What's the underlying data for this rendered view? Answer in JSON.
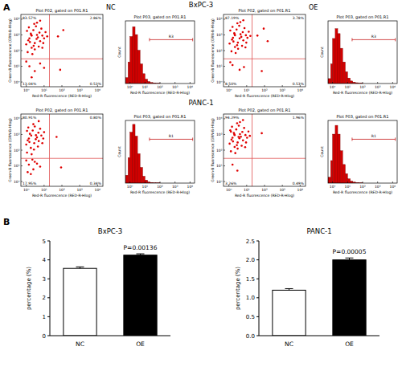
{
  "figure": {
    "panel_labels": [
      "A",
      "B"
    ],
    "row_titles": [
      "BxPC-3",
      "PANC-1"
    ]
  },
  "chart_data": [
    {
      "type": "scatter",
      "title": "Plot P02, gated on P01.R1",
      "subtitle": "NC",
      "xlabel": "Red-R fluorescence (RED-R-Hlog)",
      "ylabel": "Green-B fluorescence (GRN-B-Hlog)",
      "log": true,
      "xlim": [
        0.5,
        20000
      ],
      "ylim": [
        0.5,
        20000
      ],
      "xticks": [
        {
          "value": 1,
          "label": "10⁰"
        },
        {
          "value": 10,
          "label": "10¹"
        },
        {
          "value": 100,
          "label": "10²"
        },
        {
          "value": 1000,
          "label": "10³"
        },
        {
          "value": 10000,
          "label": "10⁴"
        }
      ],
      "yticks": [
        {
          "value": 1,
          "label": "10⁰"
        },
        {
          "value": 10,
          "label": "10¹"
        },
        {
          "value": 100,
          "label": "10²"
        },
        {
          "value": 1000,
          "label": "10³"
        },
        {
          "value": 10000,
          "label": "10⁴"
        }
      ],
      "gate_x": 20,
      "gate_y": 30,
      "quadrant_labels": [
        "83.57%",
        "2.86%",
        "13.04%",
        "0.53%"
      ],
      "color": "#e00000",
      "x": [
        1.2,
        2,
        3,
        1.5,
        4,
        2.5,
        6,
        1,
        8,
        3.5,
        1.8,
        5,
        2.2,
        10,
        1.3,
        7,
        4.5,
        2.8,
        1.1,
        3,
        12,
        6,
        2,
        9,
        1.6,
        5.5,
        3.8,
        15,
        1.4,
        2.6,
        8,
        4,
        1.9,
        1.5,
        3,
        1,
        6,
        2,
        10,
        60,
        120,
        80
      ],
      "y": [
        80,
        150,
        300,
        600,
        1000,
        2000,
        400,
        250,
        900,
        3500,
        1200,
        180,
        60,
        600,
        450,
        2500,
        700,
        5000,
        1800,
        120,
        1500,
        8000,
        900,
        300,
        350,
        1400,
        550,
        800,
        3000,
        200,
        150,
        6000,
        1000,
        10,
        5,
        20,
        15,
        2,
        8,
        800,
        2000,
        6
      ]
    },
    {
      "type": "histogram",
      "title": "Plot P03, gated on P01.R1",
      "xlabel": "Red-R fluorescence (RED-R-Hlog)",
      "ylabel": "Count",
      "log": "x",
      "xlim": [
        0.5,
        20000
      ],
      "ylim": [
        0,
        320
      ],
      "tick_labels": "x",
      "xticks": [
        {
          "value": 1,
          "label": "10⁰"
        },
        {
          "value": 10,
          "label": "10¹"
        },
        {
          "value": 100,
          "label": "10²"
        },
        {
          "value": 1000,
          "label": "10³"
        },
        {
          "value": 10000,
          "label": "10⁴"
        }
      ],
      "bins": [
        0.5,
        0.75,
        1,
        1.5,
        2.2,
        3.2,
        4.7,
        7,
        10,
        15,
        22,
        33,
        50,
        100
      ],
      "counts": [
        30,
        110,
        240,
        290,
        250,
        170,
        100,
        50,
        22,
        10,
        5,
        3,
        1
      ],
      "color": "#d40000",
      "region": {
        "label": "R3",
        "from": 20,
        "to": 15000
      }
    },
    {
      "type": "scatter",
      "title": "Plot P02, gated on P01.R1",
      "subtitle": "OE",
      "xlabel": "Red-R fluorescence (RED-R-Hlog)",
      "ylabel": "Green-B fluorescence (GRN-B-Hlog)",
      "log": true,
      "xlim": [
        0.5,
        20000
      ],
      "ylim": [
        0.5,
        20000
      ],
      "xticks": [
        {
          "value": 1,
          "label": "10⁰"
        },
        {
          "value": 10,
          "label": "10¹"
        },
        {
          "value": 100,
          "label": "10²"
        },
        {
          "value": 1000,
          "label": "10³"
        },
        {
          "value": 10000,
          "label": "10⁴"
        }
      ],
      "yticks": [
        {
          "value": 1,
          "label": "10⁰"
        },
        {
          "value": 10,
          "label": "10¹"
        },
        {
          "value": 100,
          "label": "10²"
        },
        {
          "value": 1000,
          "label": "10³"
        },
        {
          "value": 10000,
          "label": "10⁴"
        }
      ],
      "gate_x": 20,
      "gate_y": 30,
      "quadrant_labels": [
        "87.19%",
        "3.78%",
        "8.50%",
        "0.53%"
      ],
      "color": "#e00000",
      "x": [
        1.4,
        2.2,
        3.2,
        1.7,
        4.5,
        2.7,
        6.5,
        1.1,
        9,
        3.8,
        2,
        5.5,
        2.4,
        11,
        1.5,
        7.5,
        5,
        3,
        1.2,
        3.3,
        13,
        6.5,
        2.2,
        9.5,
        1.8,
        6,
        4,
        16,
        1.6,
        2.9,
        8.5,
        4.4,
        2.1,
        1.6,
        4,
        1.2,
        7,
        40,
        90,
        150,
        70
      ],
      "y": [
        90,
        170,
        320,
        650,
        1100,
        2200,
        450,
        280,
        950,
        3800,
        1300,
        200,
        70,
        650,
        500,
        2700,
        750,
        5500,
        1900,
        130,
        1600,
        8500,
        950,
        320,
        380,
        1500,
        600,
        850,
        3200,
        220,
        160,
        6500,
        1100,
        12,
        6,
        18,
        9,
        900,
        2500,
        400,
        5
      ]
    },
    {
      "type": "histogram",
      "title": "Plot P03, gated on P01.R1",
      "xlabel": "Red-R fluorescence (RED-R-Hlog)",
      "ylabel": "Count",
      "log": "x",
      "xlim": [
        0.5,
        20000
      ],
      "ylim": [
        0,
        320
      ],
      "tick_labels": "x",
      "xticks": [
        {
          "value": 1,
          "label": "10⁰"
        },
        {
          "value": 10,
          "label": "10¹"
        },
        {
          "value": 100,
          "label": "10²"
        },
        {
          "value": 1000,
          "label": "10³"
        },
        {
          "value": 10000,
          "label": "10⁴"
        }
      ],
      "bins": [
        0.5,
        0.75,
        1,
        1.5,
        2.2,
        3.2,
        4.7,
        7,
        10,
        15,
        22,
        33,
        50,
        100
      ],
      "counts": [
        25,
        100,
        230,
        280,
        255,
        180,
        110,
        60,
        28,
        13,
        7,
        4,
        2
      ],
      "color": "#d40000",
      "region": {
        "label": "R3",
        "from": 20,
        "to": 15000
      }
    },
    {
      "type": "scatter",
      "title": "Plot P02, gated on P01.R1",
      "xlabel": "Red-R fluorescence (RED-R-Hlog)",
      "ylabel": "Green-B fluorescence (GRN-B-Hlog)",
      "log": true,
      "xlim": [
        0.5,
        20000
      ],
      "ylim": [
        0.5,
        20000
      ],
      "xticks": [
        {
          "value": 1,
          "label": "10⁰"
        },
        {
          "value": 10,
          "label": "10¹"
        },
        {
          "value": 100,
          "label": "10²"
        },
        {
          "value": 1000,
          "label": "10³"
        },
        {
          "value": 10000,
          "label": "10⁴"
        }
      ],
      "yticks": [
        {
          "value": 1,
          "label": "10⁰"
        },
        {
          "value": 10,
          "label": "10¹"
        },
        {
          "value": 100,
          "label": "10²"
        },
        {
          "value": 1000,
          "label": "10³"
        },
        {
          "value": 10000,
          "label": "10⁴"
        }
      ],
      "gate_x": 20,
      "gate_y": 30,
      "quadrant_labels": [
        "80.91%",
        "0.80%",
        "17.95%",
        "0.34%"
      ],
      "color": "#e00000",
      "x": [
        1.1,
        1.8,
        2.8,
        1.4,
        3.5,
        2.3,
        5,
        1,
        7,
        3,
        1.6,
        4.5,
        2,
        9,
        1.2,
        6,
        4,
        2.5,
        1.1,
        2.7,
        10,
        5,
        1.9,
        8,
        1.5,
        4.8,
        3.4,
        1.3,
        1.4,
        2.5,
        1,
        4,
        1.8,
        6,
        3,
        1.2,
        2.2,
        50,
        90
      ],
      "y": [
        70,
        140,
        280,
        550,
        900,
        1800,
        380,
        230,
        850,
        3200,
        1100,
        170,
        55,
        550,
        420,
        2300,
        650,
        4500,
        1700,
        110,
        1400,
        7000,
        850,
        280,
        330,
        1300,
        500,
        2800,
        12,
        6,
        22,
        14,
        3,
        9,
        18,
        4,
        25,
        700,
        8
      ]
    },
    {
      "type": "histogram",
      "title": "Plot P03, gated on P01.R1",
      "xlabel": "Red-R fluorescence (RED-R-Hlog)",
      "ylabel": "Count",
      "log": "x",
      "xlim": [
        0.5,
        20000
      ],
      "ylim": [
        0,
        320
      ],
      "tick_labels": "x",
      "xticks": [
        {
          "value": 1,
          "label": "10⁰"
        },
        {
          "value": 10,
          "label": "10¹"
        },
        {
          "value": 100,
          "label": "10²"
        },
        {
          "value": 1000,
          "label": "10³"
        },
        {
          "value": 10000,
          "label": "10⁴"
        }
      ],
      "bins": [
        0.5,
        0.75,
        1,
        1.5,
        2.2,
        3.2,
        4.7,
        7,
        10,
        15,
        22,
        33,
        50,
        100
      ],
      "counts": [
        40,
        130,
        260,
        300,
        240,
        150,
        80,
        35,
        15,
        6,
        3,
        1,
        1
      ],
      "color": "#d40000",
      "region": {
        "label": "R1",
        "from": 20,
        "to": 15000
      }
    },
    {
      "type": "scatter",
      "title": "Plot P02, gated on P01.R1",
      "xlabel": "Red-R fluorescence (RED-R-Hlog)",
      "ylabel": "Green-B fluorescence (GRN-B-Hlog)",
      "log": true,
      "xlim": [
        0.5,
        20000
      ],
      "ylim": [
        0.5,
        20000
      ],
      "xticks": [
        {
          "value": 1,
          "label": "10⁰"
        },
        {
          "value": 10,
          "label": "10¹"
        },
        {
          "value": 100,
          "label": "10²"
        },
        {
          "value": 1000,
          "label": "10³"
        },
        {
          "value": 10000,
          "label": "10⁴"
        }
      ],
      "yticks": [
        {
          "value": 1,
          "label": "10⁰"
        },
        {
          "value": 10,
          "label": "10¹"
        },
        {
          "value": 100,
          "label": "10²"
        },
        {
          "value": 1000,
          "label": "10³"
        },
        {
          "value": 10000,
          "label": "10⁴"
        }
      ],
      "gate_x": 20,
      "gate_y": 30,
      "quadrant_labels": [
        "94.29%",
        "1.96%",
        "3.26%",
        "0.49%"
      ],
      "color": "#e00000",
      "x": [
        1.3,
        2.1,
        3.1,
        1.6,
        4.2,
        2.6,
        6.2,
        1.1,
        8.5,
        3.6,
        1.9,
        5.2,
        2.3,
        10.5,
        1.4,
        7.2,
        4.7,
        2.9,
        1.2,
        3.1,
        12.5,
        6.2,
        2.1,
        9.2,
        1.7,
        5.7,
        3.9,
        15,
        1.5,
        2.8,
        8.2,
        4.2,
        2,
        1.3,
        3.5,
        1.6,
        3,
        70
      ],
      "y": [
        85,
        160,
        310,
        620,
        1050,
        2100,
        420,
        260,
        920,
        3600,
        1250,
        190,
        65,
        620,
        470,
        2600,
        720,
        5200,
        1850,
        125,
        1550,
        8200,
        920,
        310,
        360,
        1450,
        570,
        820,
        3100,
        210,
        155,
        6200,
        1050,
        1500,
        700,
        12,
        5,
        1200
      ]
    },
    {
      "type": "histogram",
      "title": "Plot P03, gated on P01.R1",
      "xlabel": "Red-R fluorescence (RED-R-Hlog)",
      "ylabel": "Count",
      "log": "x",
      "xlim": [
        0.5,
        20000
      ],
      "ylim": [
        0,
        320
      ],
      "tick_labels": "x",
      "xticks": [
        {
          "value": 1,
          "label": "10⁰"
        },
        {
          "value": 10,
          "label": "10¹"
        },
        {
          "value": 100,
          "label": "10²"
        },
        {
          "value": 1000,
          "label": "10³"
        },
        {
          "value": 10000,
          "label": "10⁴"
        }
      ],
      "bins": [
        0.5,
        0.75,
        1,
        1.5,
        2.2,
        3.2,
        4.7,
        7,
        10,
        15,
        22,
        33,
        50,
        100
      ],
      "counts": [
        30,
        115,
        250,
        295,
        250,
        165,
        95,
        48,
        22,
        10,
        5,
        2,
        1
      ],
      "color": "#d40000",
      "region": {
        "label": "R1",
        "from": 20,
        "to": 15000
      }
    },
    {
      "type": "bar",
      "title": "BxPC-3",
      "ylabel": "percentage (%)",
      "categories": [
        "NC",
        "OE"
      ],
      "values": [
        3.55,
        4.25
      ],
      "errors": [
        0.08,
        0.07
      ],
      "colors": [
        "#ffffff",
        "#000000"
      ],
      "ylim": [
        0,
        5
      ],
      "yticks": [
        0,
        1,
        2,
        3,
        4,
        5
      ],
      "annotations": [
        "P=0.00136"
      ]
    },
    {
      "type": "bar",
      "title": "PANC-1",
      "ylabel": "percentage (%)",
      "categories": [
        "NC",
        "OE"
      ],
      "values": [
        1.2,
        2.0
      ],
      "errors": [
        0.04,
        0.05
      ],
      "colors": [
        "#ffffff",
        "#000000"
      ],
      "ylim": [
        0,
        2.5
      ],
      "yticks": [
        {
          "value": 0,
          "label": "0.0"
        },
        0.5,
        {
          "value": 1,
          "label": "1.0"
        },
        1.5,
        {
          "value": 2,
          "label": "2.0"
        },
        2.5
      ],
      "annotations": [
        "P=0.00005"
      ]
    }
  ]
}
